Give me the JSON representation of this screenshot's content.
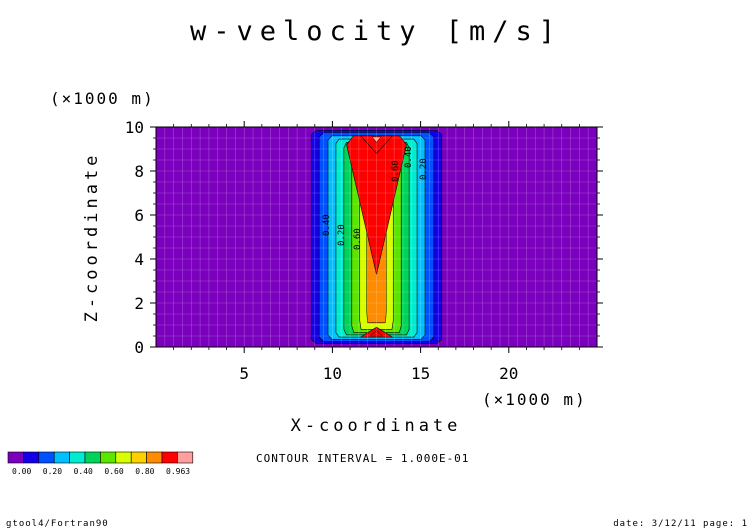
{
  "chart_data": {
    "type": "heatmap",
    "title": "w-velocity [m/s]",
    "xlabel": "X-coordinate",
    "ylabel": "Z-coordinate",
    "x_unit": "(×1000 m)",
    "y_unit": "(×1000 m)",
    "xlim": [
      0,
      25
    ],
    "ylim": [
      0,
      10
    ],
    "x_ticks": [
      "5",
      "10",
      "15",
      "20"
    ],
    "y_ticks": [
      "0",
      "2",
      "4",
      "6",
      "8",
      "10"
    ],
    "grid": true,
    "colors": [
      "#7B00BD",
      "#1400E8",
      "#0050FF",
      "#00BFFF",
      "#00EBCF",
      "#00D35A",
      "#5BE600",
      "#D8FF00",
      "#FFD000",
      "#FF8C00",
      "#FF0000",
      "#FFA0A0"
    ],
    "bands": [
      {
        "value": 0.0,
        "color_index": 0
      },
      {
        "value": 0.1,
        "color_index": 1
      },
      {
        "value": 0.2,
        "color_index": 2
      },
      {
        "value": 0.3,
        "color_index": 3
      },
      {
        "value": 0.4,
        "color_index": 4
      },
      {
        "value": 0.5,
        "color_index": 5
      },
      {
        "value": 0.6,
        "color_index": 6
      },
      {
        "value": 0.7,
        "color_index": 7
      },
      {
        "value": 0.8,
        "color_index": 9
      },
      {
        "value": 0.9,
        "color_index": 10
      }
    ],
    "contour_labels": [
      "0.40",
      "0.20",
      "0.60",
      "0.60",
      "0.40",
      "0.20"
    ],
    "legend_ticks": [
      "0.00",
      "0.20",
      "0.40",
      "0.60",
      "0.80",
      "0.963"
    ],
    "contour_interval": "CONTOUR INTERVAL = 1.000E-01"
  },
  "footer": {
    "left": "gtool4/Fortran90",
    "right": "date: 3/12/11 page: 1"
  }
}
